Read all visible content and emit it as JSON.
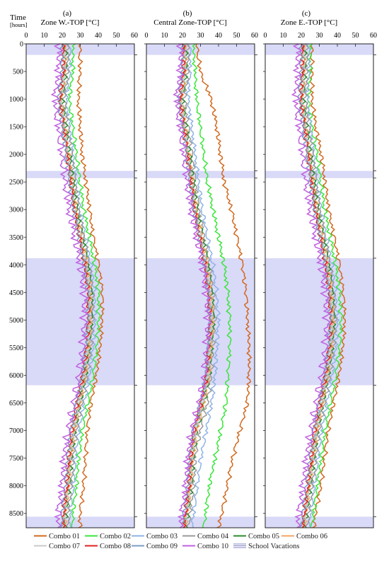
{
  "figure": {
    "time_label": "Time",
    "time_unit": "[hours]",
    "time_ticks": [
      0,
      500,
      1000,
      1500,
      2000,
      2500,
      3000,
      3500,
      4000,
      4500,
      5000,
      5500,
      6000,
      6500,
      7000,
      7500,
      8000,
      8500
    ],
    "temp_ticks": [
      0,
      10,
      20,
      30,
      40,
      50,
      60
    ]
  },
  "chart_data": [
    {
      "type": "line",
      "panel_label": "(a)",
      "title": "Zone W.-TOP [°C]",
      "ylabel": "Time [hours]",
      "ylim": [
        0,
        8760
      ],
      "xlim": [
        0,
        60
      ],
      "y_inverted": true,
      "y": [
        0,
        500,
        1000,
        1500,
        2000,
        2500,
        3000,
        3500,
        4000,
        4500,
        5000,
        5500,
        6000,
        6500,
        7000,
        7500,
        8000,
        8500,
        8760
      ],
      "series": [
        {
          "name": "Combo 01",
          "values": [
            30,
            30,
            29,
            30,
            31,
            33,
            35,
            37,
            40,
            42,
            42,
            41,
            39,
            36,
            34,
            33,
            32,
            30,
            30
          ]
        },
        {
          "name": "Combo 02",
          "values": [
            26,
            26,
            24,
            26,
            28,
            30,
            32,
            35,
            38,
            40,
            40,
            39,
            37,
            34,
            31,
            29,
            28,
            26,
            26
          ]
        },
        {
          "name": "Combo 03",
          "values": [
            24,
            24,
            22,
            24,
            26,
            28,
            30,
            33,
            36,
            38,
            38,
            37,
            35,
            32,
            29,
            27,
            26,
            24,
            24
          ]
        },
        {
          "name": "Combo 04",
          "values": [
            23,
            23,
            21,
            23,
            25,
            27,
            29,
            32,
            35,
            37,
            37,
            36,
            34,
            31,
            28,
            26,
            25,
            23,
            23
          ]
        },
        {
          "name": "Combo 05",
          "values": [
            22,
            22,
            20,
            22,
            24,
            26,
            28,
            31,
            34,
            36,
            36,
            35,
            33,
            30,
            27,
            25,
            24,
            22,
            22
          ]
        },
        {
          "name": "Combo 06",
          "values": [
            21.5,
            21.5,
            19.5,
            21.5,
            23.5,
            25.5,
            27.5,
            30.5,
            33.5,
            35.5,
            35.5,
            34.5,
            32.5,
            29.5,
            26.5,
            24.5,
            23.5,
            21.5,
            21.5
          ]
        },
        {
          "name": "Combo 07",
          "values": [
            21,
            21,
            19,
            21,
            23,
            25,
            27,
            30,
            33,
            35,
            35,
            34,
            32,
            29,
            26,
            24,
            23,
            21,
            21
          ]
        },
        {
          "name": "Combo 08",
          "values": [
            20.5,
            20.5,
            18.5,
            20.5,
            22.5,
            24.5,
            26.5,
            29.5,
            32.5,
            34.5,
            34.5,
            33.5,
            31.5,
            28.5,
            25.5,
            23.5,
            22.5,
            20.5,
            20.5
          ]
        },
        {
          "name": "Combo 09",
          "values": [
            20,
            20,
            18,
            20,
            22,
            24,
            26,
            29,
            32,
            34,
            34,
            33,
            31,
            28,
            25,
            23,
            22,
            20,
            20
          ]
        },
        {
          "name": "Combo 10",
          "values": [
            18,
            18,
            16,
            18,
            20,
            22,
            24,
            27,
            30,
            32,
            32,
            31,
            29,
            26,
            23,
            21,
            20,
            18,
            18
          ]
        }
      ],
      "school_vacations": [
        [
          0,
          200
        ],
        [
          2300,
          2430
        ],
        [
          3880,
          6180
        ],
        [
          8560,
          8760
        ]
      ]
    },
    {
      "type": "line",
      "panel_label": "(b)",
      "title": "Central Zone-TOP [°C]",
      "ylabel": "Time [hours]",
      "ylim": [
        0,
        8760
      ],
      "xlim": [
        0,
        60
      ],
      "y_inverted": true,
      "y": [
        0,
        500,
        1000,
        1500,
        2000,
        2500,
        3000,
        3500,
        4000,
        4500,
        5000,
        5500,
        6000,
        6500,
        7000,
        7500,
        8000,
        8500,
        8760
      ],
      "series": [
        {
          "name": "Combo 01",
          "values": [
            28,
            30,
            36,
            39,
            41,
            43,
            47,
            50,
            53,
            55,
            56,
            57,
            57,
            56,
            52,
            48,
            45,
            42,
            40
          ]
        },
        {
          "name": "Combo 02",
          "values": [
            26,
            27,
            28,
            30,
            32,
            34,
            37,
            40,
            43,
            45,
            46,
            46,
            45,
            44,
            41,
            38,
            35,
            33,
            32
          ]
        },
        {
          "name": "Combo 03",
          "values": [
            24,
            24,
            23,
            25,
            27,
            29,
            31,
            34,
            37,
            39,
            40,
            39,
            38,
            36,
            33,
            30,
            28,
            26,
            25
          ]
        },
        {
          "name": "Combo 04",
          "values": [
            23,
            23,
            21,
            23,
            25,
            27,
            29,
            32,
            35,
            37,
            38,
            37,
            36,
            34,
            30,
            27,
            26,
            24,
            23
          ]
        },
        {
          "name": "Combo 05",
          "values": [
            22,
            22,
            20,
            22,
            24,
            26,
            28,
            31,
            34,
            36,
            37,
            36,
            35,
            32,
            28,
            26,
            25,
            23,
            22
          ]
        },
        {
          "name": "Combo 06",
          "values": [
            21.5,
            21.5,
            19.5,
            21.5,
            23.5,
            25.5,
            27.5,
            30.5,
            33.5,
            35.5,
            36.5,
            35.5,
            34.5,
            31.5,
            27.5,
            25.5,
            24.5,
            22.5,
            21.5
          ]
        },
        {
          "name": "Combo 07",
          "values": [
            21,
            21,
            19,
            21,
            23,
            25,
            27,
            30,
            33,
            35,
            36,
            35,
            34,
            31,
            27,
            25,
            24,
            22,
            21
          ]
        },
        {
          "name": "Combo 08",
          "values": [
            20.5,
            20.5,
            18.5,
            20.5,
            22.5,
            24.5,
            26.5,
            29.5,
            32.5,
            34.5,
            35.5,
            34.5,
            33.5,
            30.5,
            26.5,
            24.5,
            23.5,
            21.5,
            20.5
          ]
        },
        {
          "name": "Combo 09",
          "values": [
            20,
            20,
            18,
            20,
            22,
            24,
            26,
            29,
            32,
            34,
            35,
            34,
            33,
            30,
            26,
            24,
            23,
            21,
            20
          ]
        },
        {
          "name": "Combo 10",
          "values": [
            19,
            19,
            17,
            19,
            21,
            23,
            25,
            28,
            31,
            33,
            34,
            33,
            32,
            29,
            25,
            23,
            22,
            20,
            19
          ]
        }
      ],
      "school_vacations": [
        [
          0,
          200
        ],
        [
          2300,
          2430
        ],
        [
          3880,
          6180
        ],
        [
          8560,
          8760
        ]
      ]
    },
    {
      "type": "line",
      "panel_label": "(c)",
      "title": "Zone E.-TOP [°C]",
      "ylabel": "Time [hours]",
      "ylim": [
        0,
        8760
      ],
      "xlim": [
        0,
        60
      ],
      "y_inverted": true,
      "y": [
        0,
        500,
        1000,
        1500,
        2000,
        2500,
        3000,
        3500,
        4000,
        4500,
        5000,
        5500,
        6000,
        6500,
        7000,
        7500,
        8000,
        8500,
        8760
      ],
      "series": [
        {
          "name": "Combo 01",
          "values": [
            26,
            26,
            26,
            28,
            31,
            33,
            35,
            38,
            41,
            43,
            44,
            43,
            41,
            38,
            35,
            33,
            31,
            28,
            27
          ]
        },
        {
          "name": "Combo 02",
          "values": [
            25,
            25,
            24,
            26,
            29,
            31,
            33,
            36,
            39,
            41,
            42,
            41,
            39,
            36,
            33,
            31,
            29,
            27,
            26
          ]
        },
        {
          "name": "Combo 03",
          "values": [
            24,
            24,
            23,
            25,
            27,
            29,
            31,
            34,
            37,
            39,
            40,
            39,
            37,
            34,
            31,
            29,
            27,
            25,
            24
          ]
        },
        {
          "name": "Combo 04",
          "values": [
            23,
            23,
            22,
            24,
            26,
            28,
            30,
            33,
            36,
            38,
            39,
            38,
            36,
            33,
            30,
            28,
            26,
            24,
            23
          ]
        },
        {
          "name": "Combo 05",
          "values": [
            22,
            22,
            21,
            23,
            25,
            27,
            29,
            32,
            35,
            37,
            38,
            37,
            35,
            32,
            29,
            27,
            25,
            23,
            22
          ]
        },
        {
          "name": "Combo 06",
          "values": [
            21.5,
            21.5,
            20.5,
            22.5,
            24.5,
            26.5,
            28.5,
            31.5,
            34.5,
            36.5,
            37.5,
            36.5,
            34.5,
            31.5,
            28.5,
            26.5,
            24.5,
            22.5,
            21.5
          ]
        },
        {
          "name": "Combo 07",
          "values": [
            21,
            21,
            20,
            22,
            24,
            26,
            28,
            31,
            34,
            36,
            37,
            36,
            34,
            31,
            28,
            26,
            24,
            22,
            21
          ]
        },
        {
          "name": "Combo 08",
          "values": [
            20.5,
            20.5,
            19.5,
            21.5,
            23.5,
            25.5,
            27.5,
            30.5,
            33.5,
            35.5,
            36.5,
            35.5,
            33.5,
            30.5,
            27.5,
            25.5,
            23.5,
            21.5,
            20.5
          ]
        },
        {
          "name": "Combo 09",
          "values": [
            20,
            20,
            19,
            21,
            23,
            25,
            27,
            30,
            33,
            35,
            36,
            35,
            33,
            30,
            27,
            25,
            23,
            21,
            20
          ]
        },
        {
          "name": "Combo 10",
          "values": [
            18,
            18,
            17,
            19,
            21,
            23,
            25,
            28,
            31,
            33,
            34,
            33,
            31,
            28,
            25,
            23,
            21,
            19,
            18
          ]
        }
      ],
      "school_vacations": [
        [
          0,
          200
        ],
        [
          2300,
          2430
        ],
        [
          3880,
          6180
        ],
        [
          8560,
          8760
        ]
      ]
    }
  ],
  "legend": {
    "items": [
      {
        "label": "Combo 01",
        "color": "#d2691e"
      },
      {
        "label": "Combo 02",
        "color": "#39e639"
      },
      {
        "label": "Combo 03",
        "color": "#8fb3e6"
      },
      {
        "label": "Combo 04",
        "color": "#9a9a9a"
      },
      {
        "label": "Combo 05",
        "color": "#2e8b2e"
      },
      {
        "label": "Combo 06",
        "color": "#f4a460"
      },
      {
        "label": "Combo 07",
        "color": "#c8c8c8"
      },
      {
        "label": "Combo 08",
        "color": "#e02020"
      },
      {
        "label": "Combo 09",
        "color": "#7a9cc6"
      },
      {
        "label": "Combo 10",
        "color": "#c060e0"
      }
    ],
    "vacation_label": "School Vacations",
    "vacation_color": "#ccccf5"
  }
}
